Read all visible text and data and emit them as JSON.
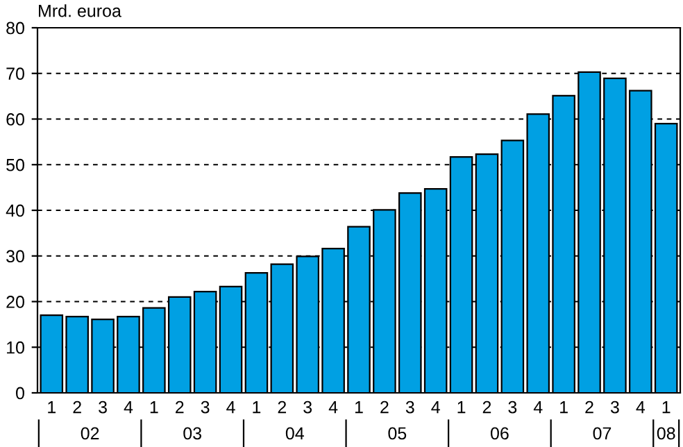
{
  "chart_data": {
    "type": "bar",
    "ylabel": "Mrd. euroa",
    "categories": [
      "1",
      "2",
      "3",
      "4",
      "1",
      "2",
      "3",
      "4",
      "1",
      "2",
      "3",
      "4",
      "1",
      "2",
      "3",
      "4",
      "1",
      "2",
      "3",
      "4",
      "1",
      "2",
      "3",
      "4",
      "1"
    ],
    "values": [
      17.0,
      16.7,
      16.1,
      16.7,
      18.6,
      21.0,
      22.2,
      23.3,
      26.3,
      28.2,
      29.9,
      31.6,
      36.4,
      40.1,
      43.8,
      44.7,
      51.7,
      52.3,
      55.3,
      61.1,
      65.1,
      70.3,
      68.9,
      66.2,
      59.0
    ],
    "color": "#00a0e3",
    "ylim": [
      0,
      80
    ],
    "yticks": [
      0,
      10,
      20,
      30,
      40,
      50,
      60,
      70,
      80
    ],
    "grid": "y",
    "annotations": [
      "02",
      "03",
      "04",
      "05",
      "06",
      "07",
      "08"
    ]
  }
}
